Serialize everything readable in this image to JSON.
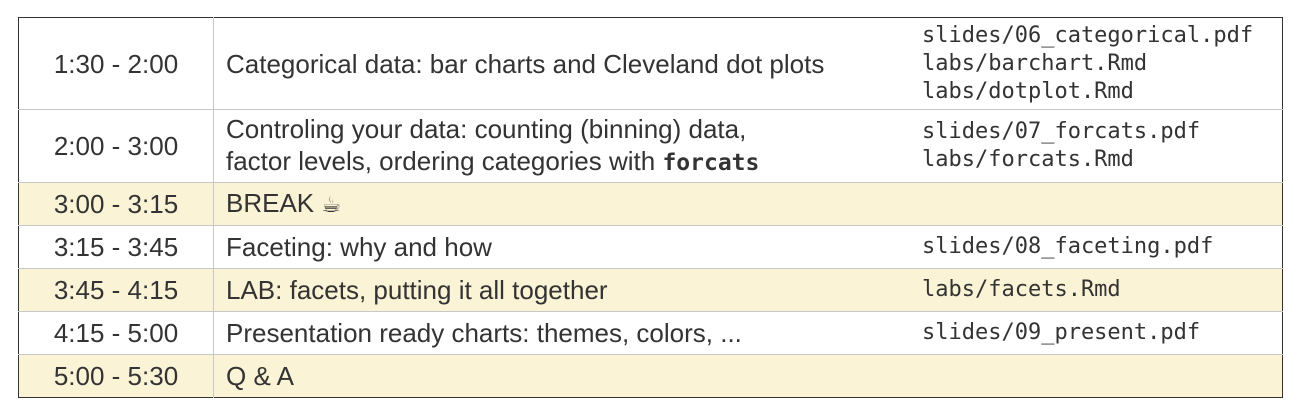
{
  "rows": [
    {
      "time": "1:30 - 2:00",
      "topic": "Categorical data: bar charts and Cleveland dot plots",
      "files": [
        "slides/06_categorical.pdf",
        "labs/barchart.Rmd",
        "labs/dotplot.Rmd"
      ]
    },
    {
      "time": "2:00 - 3:00",
      "topic_line1": "Controling your data: counting (binning) data,",
      "topic_line2": "factor levels, ordering categories with",
      "topic_code": "forcats",
      "files": [
        "slides/07_forcats.pdf",
        "labs/forcats.Rmd"
      ]
    },
    {
      "time": "3:00 - 3:15",
      "topic": "BREAK",
      "icon": "coffee-cup-icon",
      "icon_glyph": "☕"
    },
    {
      "time": "3:15 - 3:45",
      "topic": "Faceting: why and how",
      "files": [
        "slides/08_faceting.pdf"
      ]
    },
    {
      "time": "3:45 - 4:15",
      "topic": "LAB: facets, putting it all together",
      "files": [
        "labs/facets.Rmd"
      ]
    },
    {
      "time": "4:15 - 5:00",
      "topic": "Presentation ready charts: themes, colors, ...",
      "files": [
        "slides/09_present.pdf"
      ]
    },
    {
      "time": "5:00 - 5:30",
      "topic": "Q & A"
    }
  ],
  "colors": {
    "break_row_bg": "#faf3d6",
    "border": "#333333",
    "text": "#333333"
  }
}
